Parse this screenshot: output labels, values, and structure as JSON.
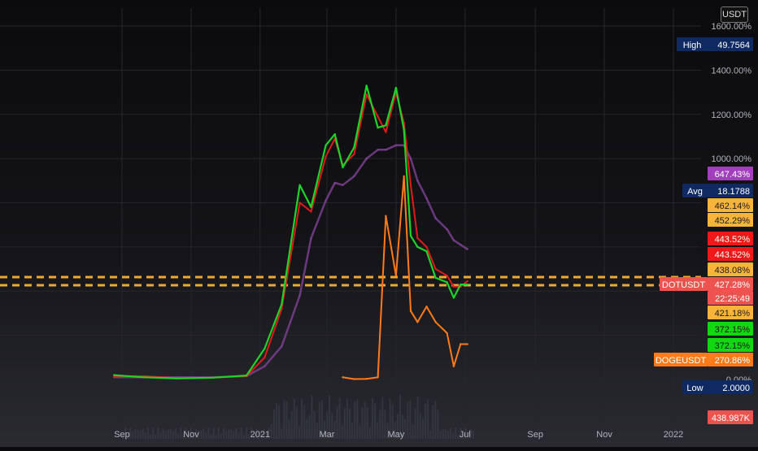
{
  "currency": "USDT",
  "colors": {
    "price_fast": "#1fd32a",
    "price_slow": "#e01b1b",
    "ma_long": "#7a3f8f",
    "doge": "#ff7a1a",
    "level": "#f0a830",
    "grid": "#26272c",
    "axis_text": "#b2b5be",
    "volume": "#3b3f4a"
  },
  "x_axis": {
    "ticks": [
      "Sep",
      "Nov",
      "2021",
      "Mar",
      "May",
      "Jul",
      "Sep",
      "Nov",
      "2022"
    ]
  },
  "y_axis": {
    "scale": "percent",
    "ticks": [
      "1600.00%",
      "1400.00%",
      "1200.00%",
      "1000.00%",
      "0.00%"
    ]
  },
  "labels": [
    {
      "id": "high",
      "name": "High",
      "value": "49.7564",
      "bg": "#0f2a63",
      "fg": "#ffffff"
    },
    {
      "id": "pct-647",
      "name": "",
      "value": "647.43%",
      "bg": "#a23fbf",
      "fg": "#ffffff"
    },
    {
      "id": "avg",
      "name": "Avg",
      "value": "18.1788",
      "bg": "#0f2a63",
      "fg": "#ffffff"
    },
    {
      "id": "pct-462",
      "name": "",
      "value": "462.14%",
      "bg": "#f6b53a",
      "fg": "#1a1a1a"
    },
    {
      "id": "pct-452",
      "name": "",
      "value": "452.29%",
      "bg": "#f6b53a",
      "fg": "#1a1a1a"
    },
    {
      "id": "pct-443a",
      "name": "",
      "value": "443.52%",
      "bg": "#f01818",
      "fg": "#ffffff"
    },
    {
      "id": "pct-443b",
      "name": "",
      "value": "443.52%",
      "bg": "#f01818",
      "fg": "#ffffff"
    },
    {
      "id": "pct-438",
      "name": "",
      "value": "438.08%",
      "bg": "#f6b53a",
      "fg": "#1a1a1a"
    },
    {
      "id": "dotusdt",
      "name": "DOTUSDT",
      "value": "427.28%",
      "bg": "#ef5350",
      "fg": "#ffffff"
    },
    {
      "id": "countdown",
      "name": "",
      "value": "22:25:49",
      "bg": "#ef5350",
      "fg": "#ffffff"
    },
    {
      "id": "pct-421",
      "name": "",
      "value": "421.18%",
      "bg": "#f6b53a",
      "fg": "#1a1a1a"
    },
    {
      "id": "pct-372a",
      "name": "",
      "value": "372.15%",
      "bg": "#12d812",
      "fg": "#1a1a1a"
    },
    {
      "id": "pct-372b",
      "name": "",
      "value": "372.15%",
      "bg": "#12d812",
      "fg": "#1a1a1a"
    },
    {
      "id": "dogeusdt",
      "name": "DOGEUSDT",
      "value": "270.86%",
      "bg": "#ff7a1a",
      "fg": "#ffffff"
    },
    {
      "id": "low",
      "name": "Low",
      "value": "2.0000",
      "bg": "#0f2a63",
      "fg": "#ffffff"
    },
    {
      "id": "volume",
      "name": "",
      "value": "438.987K",
      "bg": "#ef5350",
      "fg": "#ffffff"
    }
  ],
  "chart_data": {
    "type": "line",
    "title": "",
    "x": [
      "2020-08-25",
      "2020-09-20",
      "2020-10-20",
      "2020-11-20",
      "2020-12-20",
      "2021-01-05",
      "2021-01-20",
      "2021-02-05",
      "2021-02-15",
      "2021-02-28",
      "2021-03-08",
      "2021-03-15",
      "2021-03-25",
      "2021-04-05",
      "2021-04-15",
      "2021-04-22",
      "2021-05-01",
      "2021-05-08",
      "2021-05-14",
      "2021-05-20",
      "2021-05-28",
      "2021-06-05",
      "2021-06-15",
      "2021-06-21",
      "2021-06-27",
      "2021-07-03"
    ],
    "series": [
      {
        "name": "DOTUSDT",
        "values": [
          20,
          10,
          5,
          8,
          18,
          140,
          340,
          880,
          780,
          1060,
          1110,
          960,
          1050,
          1330,
          1140,
          1150,
          1320,
          1130,
          650,
          600,
          580,
          460,
          440,
          370,
          430,
          430
        ]
      },
      {
        "name": "",
        "values": [
          15,
          15,
          6,
          8,
          15,
          100,
          320,
          800,
          760,
          1010,
          1090,
          970,
          1020,
          1290,
          1190,
          1120,
          1300,
          1160,
          880,
          640,
          600,
          500,
          470,
          420,
          420,
          445
        ]
      },
      {
        "name": "",
        "values": [
          10,
          10,
          10,
          10,
          15,
          60,
          150,
          380,
          640,
          810,
          890,
          880,
          920,
          1000,
          1040,
          1040,
          1060,
          1060,
          1000,
          900,
          820,
          730,
          680,
          630,
          610,
          590
        ]
      },
      {
        "name": "DOGEUSDT",
        "values": [
          null,
          null,
          null,
          null,
          null,
          null,
          null,
          null,
          null,
          null,
          null,
          10,
          2,
          3,
          10,
          740,
          470,
          920,
          310,
          260,
          330,
          260,
          210,
          60,
          160,
          160
        ]
      }
    ],
    "ylim": [
      -80,
      1700
    ],
    "levels": [
      460,
      440
    ]
  }
}
